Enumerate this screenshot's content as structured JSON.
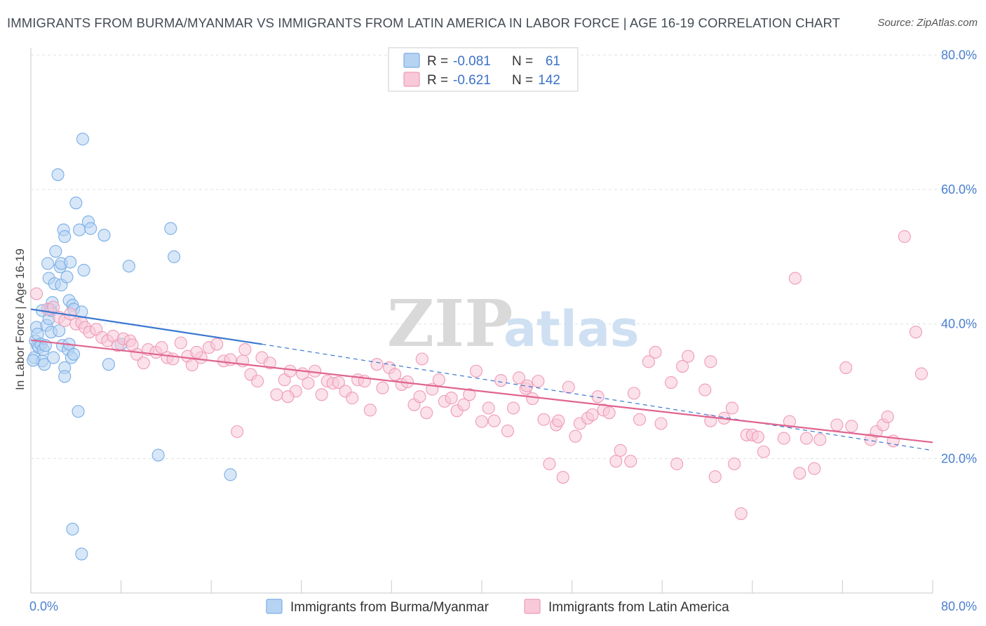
{
  "title": "IMMIGRANTS FROM BURMA/MYANMAR VS IMMIGRANTS FROM LATIN AMERICA IN LABOR FORCE | AGE 16-19 CORRELATION CHART",
  "source": "Source: ZipAtlas.com",
  "watermark": {
    "zip": "ZIP",
    "atlas": "atlas"
  },
  "colors": {
    "blue": "#7aaee6",
    "blue_fill": "#b7d3f2",
    "blue_line": "#3a78d0",
    "pink": "#ef9bb6",
    "pink_fill": "#f8c9d8",
    "pink_line": "#e0648f",
    "tick_text": "#4a7fd0",
    "grid": "#dde1e6"
  },
  "legend": {
    "rows": [
      {
        "r_label": "R =",
        "r_value": "-0.081",
        "n_label": "N =",
        "n_value": "61"
      },
      {
        "r_label": "R =",
        "r_value": "-0.621",
        "n_label": "N =",
        "n_value": "142"
      }
    ]
  },
  "chart_data": {
    "type": "scatter",
    "xlabel": "",
    "ylabel": "In Labor Force | Age 16-19",
    "xlim": [
      0,
      80
    ],
    "ylim": [
      0,
      80
    ],
    "x_tick_labels": [
      {
        "value": 0,
        "label": "0.0%"
      },
      {
        "value": 80,
        "label": "80.0%"
      }
    ],
    "y_tick_labels": [
      {
        "value": 20,
        "label": "20.0%"
      },
      {
        "value": 40,
        "label": "40.0%"
      },
      {
        "value": 60,
        "label": "60.0%"
      },
      {
        "value": 80,
        "label": "80.0%"
      }
    ],
    "grid": "horizontal dashed",
    "legend_position": "top-center",
    "series": [
      {
        "name": "Immigrants from Burma/Myanmar",
        "color": "blue",
        "trend": {
          "x": [
            0,
            20.5
          ],
          "y": [
            42.2,
            37.0
          ]
        },
        "trend_extended": {
          "x": [
            20.5,
            80
          ],
          "y": [
            37.0,
            21.2
          ]
        },
        "points": [
          [
            0.3,
            35.0
          ],
          [
            0.4,
            37.5
          ],
          [
            0.5,
            39.5
          ],
          [
            0.6,
            38.5
          ],
          [
            0.6,
            36.8
          ],
          [
            0.7,
            36.5
          ],
          [
            0.9,
            37.0
          ],
          [
            1.0,
            42.0
          ],
          [
            1.0,
            34.5
          ],
          [
            1.1,
            36.2
          ],
          [
            1.2,
            34.0
          ],
          [
            1.3,
            36.8
          ],
          [
            1.4,
            39.8
          ],
          [
            1.5,
            49.0
          ],
          [
            1.6,
            46.8
          ],
          [
            1.6,
            40.8
          ],
          [
            1.7,
            42.2
          ],
          [
            1.8,
            42.0
          ],
          [
            1.8,
            38.8
          ],
          [
            1.9,
            43.2
          ],
          [
            2.0,
            35.0
          ],
          [
            2.1,
            46.0
          ],
          [
            2.2,
            50.8
          ],
          [
            2.4,
            62.2
          ],
          [
            2.5,
            39.0
          ],
          [
            2.6,
            48.5
          ],
          [
            2.7,
            49.0
          ],
          [
            2.7,
            45.8
          ],
          [
            2.8,
            36.8
          ],
          [
            2.9,
            54.0
          ],
          [
            3.0,
            53.0
          ],
          [
            3.0,
            33.5
          ],
          [
            3.0,
            32.2
          ],
          [
            3.2,
            47.0
          ],
          [
            3.3,
            36.2
          ],
          [
            3.4,
            37.0
          ],
          [
            3.4,
            43.5
          ],
          [
            3.5,
            49.2
          ],
          [
            3.6,
            35.0
          ],
          [
            3.7,
            42.8
          ],
          [
            3.7,
            9.5
          ],
          [
            3.8,
            42.2
          ],
          [
            3.8,
            35.5
          ],
          [
            4.0,
            58.0
          ],
          [
            4.2,
            27.0
          ],
          [
            4.3,
            54.0
          ],
          [
            4.5,
            41.8
          ],
          [
            4.5,
            5.8
          ],
          [
            4.6,
            67.5
          ],
          [
            4.7,
            48.0
          ],
          [
            5.1,
            55.2
          ],
          [
            5.3,
            54.2
          ],
          [
            6.5,
            53.2
          ],
          [
            6.9,
            34.0
          ],
          [
            8.0,
            37.0
          ],
          [
            8.7,
            48.6
          ],
          [
            11.3,
            20.5
          ],
          [
            12.4,
            54.2
          ],
          [
            12.7,
            50.0
          ],
          [
            17.7,
            17.6
          ],
          [
            0.2,
            34.6
          ]
        ]
      },
      {
        "name": "Immigrants from Latin America",
        "color": "pink",
        "trend": {
          "x": [
            0,
            80
          ],
          "y": [
            37.6,
            22.4
          ]
        },
        "points": [
          [
            0.5,
            44.5
          ],
          [
            1.5,
            42.2
          ],
          [
            2.0,
            42.5
          ],
          [
            2.5,
            41.0
          ],
          [
            3.0,
            40.5
          ],
          [
            3.5,
            41.5
          ],
          [
            4.0,
            40.0
          ],
          [
            4.5,
            40.2
          ],
          [
            4.8,
            39.5
          ],
          [
            5.2,
            38.8
          ],
          [
            5.8,
            39.2
          ],
          [
            6.3,
            38.0
          ],
          [
            6.8,
            37.5
          ],
          [
            7.3,
            38.2
          ],
          [
            7.7,
            36.8
          ],
          [
            8.2,
            37.8
          ],
          [
            8.8,
            37.5
          ],
          [
            9.4,
            35.5
          ],
          [
            10.0,
            34.2
          ],
          [
            10.4,
            36.2
          ],
          [
            11.1,
            35.8
          ],
          [
            11.6,
            36.5
          ],
          [
            12.1,
            35.0
          ],
          [
            12.6,
            34.8
          ],
          [
            13.3,
            37.2
          ],
          [
            13.9,
            35.2
          ],
          [
            14.3,
            33.9
          ],
          [
            15.1,
            35.0
          ],
          [
            15.8,
            36.5
          ],
          [
            16.5,
            37.0
          ],
          [
            17.1,
            34.5
          ],
          [
            17.7,
            34.7
          ],
          [
            18.3,
            24.0
          ],
          [
            19.0,
            36.2
          ],
          [
            19.5,
            32.5
          ],
          [
            20.1,
            31.5
          ],
          [
            20.5,
            35.0
          ],
          [
            21.2,
            34.2
          ],
          [
            21.8,
            29.5
          ],
          [
            22.5,
            31.7
          ],
          [
            23.0,
            33.0
          ],
          [
            23.5,
            30.0
          ],
          [
            24.1,
            32.6
          ],
          [
            24.6,
            31.2
          ],
          [
            25.2,
            33.0
          ],
          [
            25.8,
            29.5
          ],
          [
            26.3,
            31.5
          ],
          [
            26.8,
            31.2
          ],
          [
            27.3,
            31.3
          ],
          [
            27.9,
            30.0
          ],
          [
            28.5,
            29.0
          ],
          [
            29.0,
            31.7
          ],
          [
            29.6,
            31.5
          ],
          [
            30.1,
            27.2
          ],
          [
            30.7,
            34.0
          ],
          [
            31.2,
            30.5
          ],
          [
            31.8,
            33.5
          ],
          [
            32.3,
            32.5
          ],
          [
            32.9,
            31.0
          ],
          [
            33.4,
            31.4
          ],
          [
            34.0,
            28.0
          ],
          [
            34.5,
            29.2
          ],
          [
            35.1,
            26.8
          ],
          [
            35.6,
            30.3
          ],
          [
            36.2,
            31.7
          ],
          [
            36.7,
            28.5
          ],
          [
            37.3,
            29.0
          ],
          [
            37.8,
            27.1
          ],
          [
            38.4,
            28.0
          ],
          [
            38.9,
            29.5
          ],
          [
            39.5,
            33.0
          ],
          [
            40.0,
            25.5
          ],
          [
            40.6,
            27.5
          ],
          [
            41.1,
            25.6
          ],
          [
            41.7,
            31.6
          ],
          [
            42.3,
            24.1
          ],
          [
            42.8,
            27.5
          ],
          [
            43.3,
            32.0
          ],
          [
            43.9,
            30.4
          ],
          [
            44.5,
            28.9
          ],
          [
            45.0,
            31.5
          ],
          [
            45.5,
            25.8
          ],
          [
            46.0,
            19.2
          ],
          [
            46.6,
            25.0
          ],
          [
            47.2,
            17.2
          ],
          [
            47.7,
            30.6
          ],
          [
            48.3,
            23.3
          ],
          [
            48.7,
            25.2
          ],
          [
            49.4,
            26.0
          ],
          [
            49.8,
            26.5
          ],
          [
            50.3,
            29.2
          ],
          [
            50.8,
            27.2
          ],
          [
            51.3,
            26.8
          ],
          [
            51.9,
            19.6
          ],
          [
            52.3,
            21.2
          ],
          [
            53.2,
            19.6
          ],
          [
            53.5,
            29.7
          ],
          [
            54.0,
            25.8
          ],
          [
            54.8,
            34.4
          ],
          [
            55.4,
            35.8
          ],
          [
            55.9,
            25.2
          ],
          [
            56.8,
            31.3
          ],
          [
            57.3,
            19.2
          ],
          [
            57.8,
            33.7
          ],
          [
            58.3,
            35.2
          ],
          [
            59.8,
            30.2
          ],
          [
            60.3,
            25.6
          ],
          [
            60.7,
            17.3
          ],
          [
            61.5,
            26.0
          ],
          [
            62.2,
            27.5
          ],
          [
            62.4,
            19.2
          ],
          [
            63.0,
            11.8
          ],
          [
            63.5,
            23.5
          ],
          [
            64.0,
            23.5
          ],
          [
            65.0,
            21.0
          ],
          [
            66.8,
            23.0
          ],
          [
            67.3,
            25.5
          ],
          [
            68.2,
            17.8
          ],
          [
            68.8,
            23.0
          ],
          [
            69.5,
            18.5
          ],
          [
            70.0,
            22.8
          ],
          [
            71.5,
            25.0
          ],
          [
            72.3,
            33.5
          ],
          [
            72.8,
            24.8
          ],
          [
            74.5,
            22.8
          ],
          [
            75.0,
            24.0
          ],
          [
            75.6,
            25.0
          ],
          [
            76.0,
            26.2
          ],
          [
            76.5,
            22.6
          ],
          [
            78.5,
            38.8
          ],
          [
            79.0,
            32.6
          ],
          [
            77.5,
            53.0
          ],
          [
            64.5,
            23.2
          ],
          [
            67.8,
            46.8
          ],
          [
            60.3,
            34.4
          ],
          [
            44.0,
            30.8
          ],
          [
            46.8,
            25.6
          ],
          [
            34.7,
            34.8
          ],
          [
            22.8,
            29.2
          ],
          [
            18.8,
            34.5
          ],
          [
            14.7,
            35.8
          ],
          [
            9.0,
            36.9
          ]
        ]
      }
    ]
  },
  "bottom_legend": [
    {
      "label": "Immigrants from Burma/Myanmar",
      "color": "blue"
    },
    {
      "label": "Immigrants from Latin America",
      "color": "pink"
    }
  ]
}
